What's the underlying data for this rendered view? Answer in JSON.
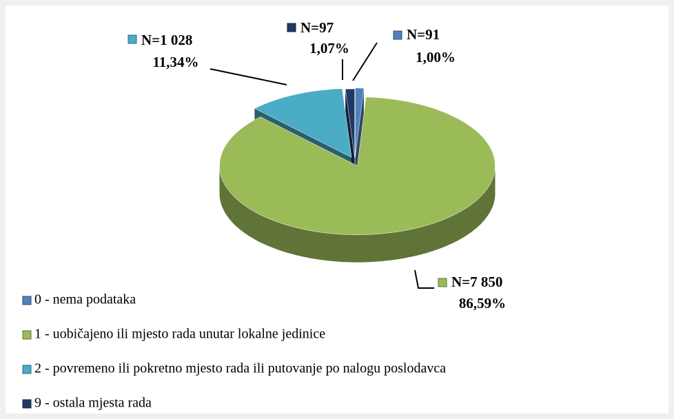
{
  "chart_data": {
    "type": "pie3d",
    "categories": [
      "0 - nema podataka",
      "1 - uobičajeno ili mjesto rada unutar lokalne jedinice",
      "2 - povremeno ili pokretno mjesto rada ili putovanje po nalogu poslodavca",
      "9 - ostala mjesta rada"
    ],
    "values": [
      1.0,
      86.59,
      11.34,
      1.07
    ],
    "value_labels": [
      "1,00%",
      "86,59%",
      "11,34%",
      "1,07%"
    ],
    "counts": [
      91,
      7850,
      1028,
      97
    ],
    "count_labels": [
      "N=91",
      "N=7 850",
      "N=1 028",
      "N=97"
    ],
    "colors": [
      "#4f81bd",
      "#9bbb59",
      "#4bacc6",
      "#1f3864"
    ],
    "legend": "bottom-left"
  }
}
